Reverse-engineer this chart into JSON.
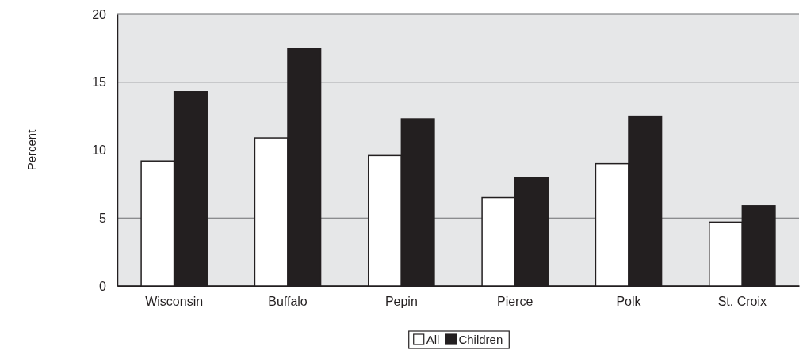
{
  "chart_data": {
    "type": "bar",
    "ylabel": "Percent",
    "categories": [
      "Wisconsin",
      "Buffalo",
      "Pepin",
      "Pierce",
      "Polk",
      "St. Croix"
    ],
    "series": [
      {
        "name": "All",
        "color": "#ffffff",
        "values": [
          9.2,
          10.9,
          9.6,
          6.5,
          9.0,
          4.7
        ]
      },
      {
        "name": "Children",
        "color": "#231f20",
        "values": [
          14.3,
          17.5,
          12.3,
          8.0,
          12.5,
          5.9
        ]
      }
    ],
    "ylim": [
      0,
      20
    ],
    "yticks": [
      0,
      5,
      10,
      15,
      20
    ],
    "grid": "y",
    "legend": "bottom"
  }
}
